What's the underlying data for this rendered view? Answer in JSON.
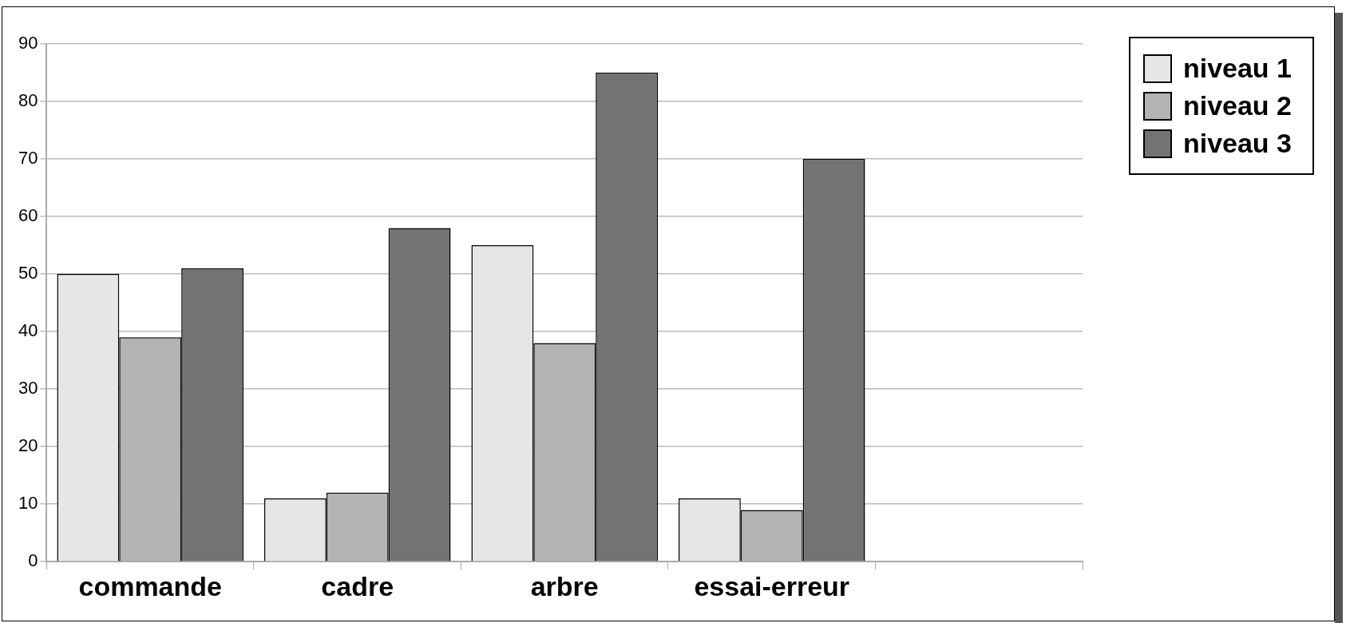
{
  "chart_data": {
    "type": "bar",
    "categories": [
      "commande",
      "cadre",
      "arbre",
      "essai-erreur",
      null
    ],
    "series": [
      {
        "name": "niveau 1",
        "color": "#e6e6e6",
        "values": [
          50,
          11,
          55,
          11,
          0
        ]
      },
      {
        "name": "niveau 2",
        "color": "#b3b3b3",
        "values": [
          39,
          12,
          38,
          9,
          0
        ]
      },
      {
        "name": "niveau 3",
        "color": "#737373",
        "values": [
          51,
          58,
          85,
          70,
          0
        ]
      }
    ],
    "ylim": [
      0,
      90
    ],
    "yticks": [
      0,
      10,
      20,
      30,
      40,
      50,
      60,
      70,
      80,
      90
    ],
    "grid": "y",
    "legend": "top right"
  }
}
